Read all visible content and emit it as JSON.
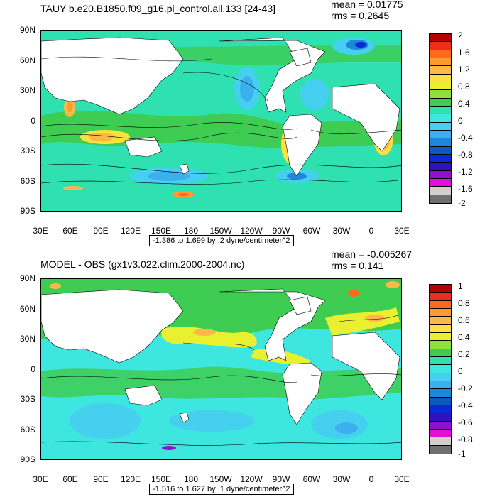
{
  "panels": [
    {
      "title": "TAUY b.e20.B1850.f09_g16.pi_control.all.133 [24-43]",
      "mean": "mean = 0.01775",
      "rms": "rms = 0.2645",
      "range": "-1.386 to 1.699 by .2 dyne/centimeter^2",
      "colorbar_labels": [
        "2",
        "1.6",
        "1.2",
        "0.8",
        "0.4",
        "0",
        "-0.4",
        "-0.8",
        "-1.2",
        "-1.6",
        "-2"
      ],
      "colorbar_colors": [
        "#b80000",
        "#ee2e1c",
        "#ff6a1a",
        "#ff9a30",
        "#ffb848",
        "#ffe040",
        "#e8f030",
        "#8ee03c",
        "#3ecc52",
        "#2fe0b0",
        "#3ee6e0",
        "#46d0f0",
        "#3cb0ec",
        "#1e88d8",
        "#0a5ac0",
        "#0a2ad8",
        "#3010c0",
        "#9010d0",
        "#e010d8",
        "#d0d0d0",
        "#707070"
      ]
    },
    {
      "title": "MODEL - OBS (gx1v3.022.clim.2000-2004.nc)",
      "mean": "mean = -0.005267",
      "rms": "rms = 0.141",
      "range": "-1.516 to 1.627 by .1 dyne/centimeter^2",
      "colorbar_labels": [
        "1",
        "0.8",
        "0.6",
        "0.4",
        "0.2",
        "0",
        "-0.2",
        "-0.4",
        "-0.6",
        "-0.8",
        "-1"
      ],
      "colorbar_colors": [
        "#b80000",
        "#ee2e1c",
        "#ff6a1a",
        "#ff9a30",
        "#ffb848",
        "#ffe040",
        "#e8f030",
        "#8ee03c",
        "#3ecc52",
        "#2fe0b0",
        "#3ee6e0",
        "#46d0f0",
        "#3cb0ec",
        "#1e88d8",
        "#0a5ac0",
        "#0a2ad8",
        "#3010c0",
        "#9010d0",
        "#e010d8",
        "#d0d0d0",
        "#707070"
      ]
    }
  ],
  "lat_labels": [
    "90N",
    "60N",
    "30N",
    "0",
    "30S",
    "60S",
    "90S"
  ],
  "lon_labels": [
    "30E",
    "60E",
    "90E",
    "120E",
    "150E",
    "180",
    "150W",
    "120W",
    "90W",
    "60W",
    "30W",
    "0",
    "30E"
  ],
  "colors": {
    "land": "#ffffff",
    "ocean_base": "#2fe0b0",
    "outline": "#000000"
  }
}
